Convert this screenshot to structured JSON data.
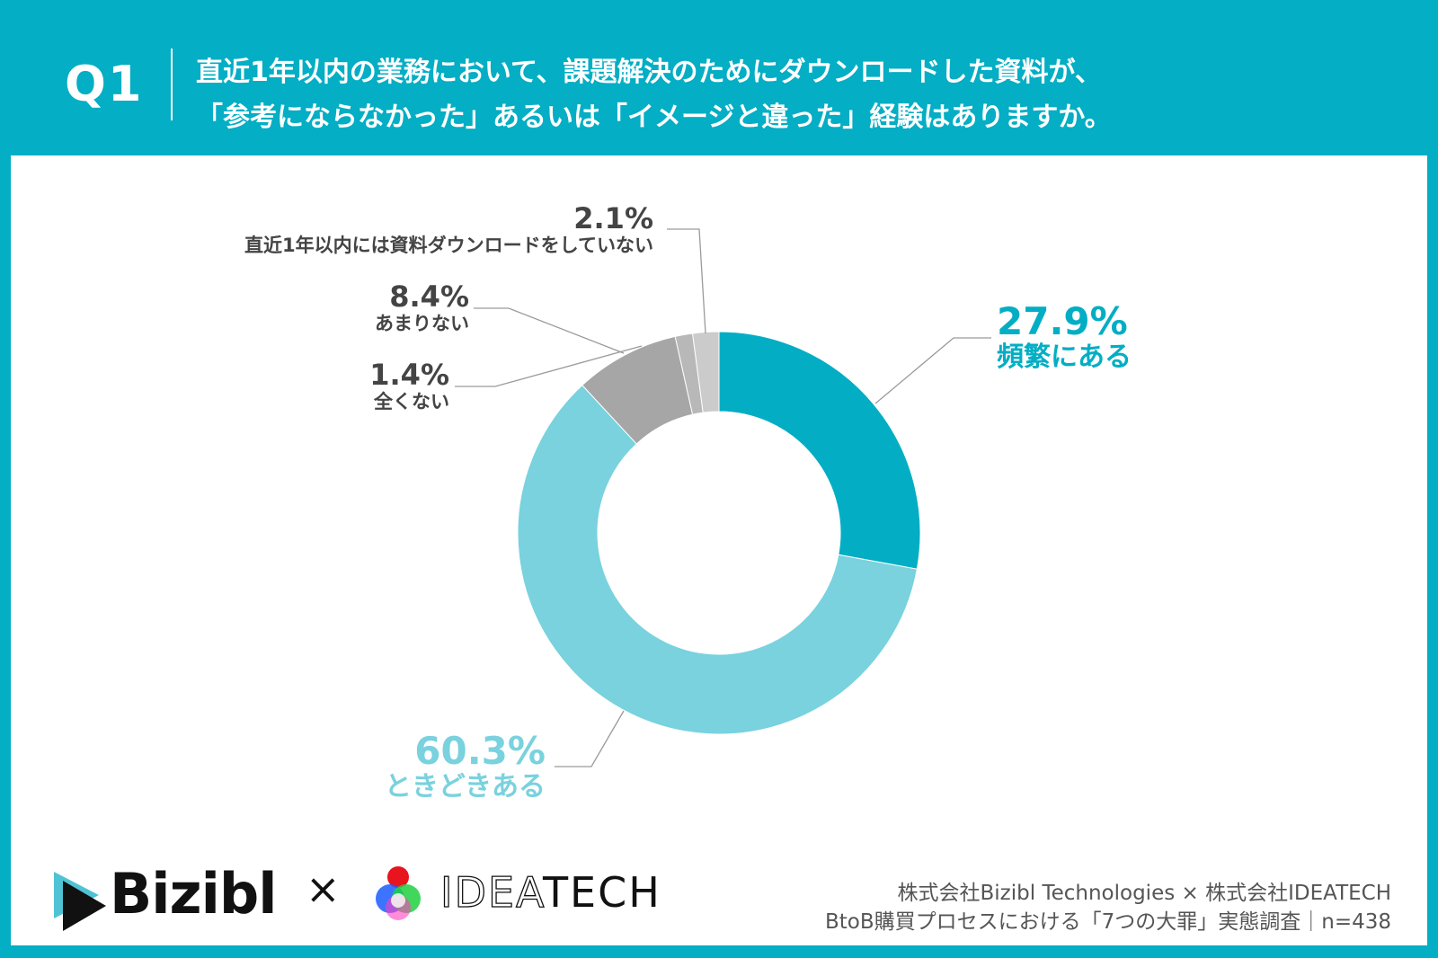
{
  "header": {
    "q_label": "Q1",
    "title_line1": "直近1年以内の業務において、課題解決のためにダウンロードした資料が、",
    "title_line2": "「参考にならなかった」あるいは「イメージと違った」経験はありますか。"
  },
  "chart_data": {
    "type": "pie",
    "donut": true,
    "slices": [
      {
        "label": "頻繁にある",
        "value": 27.9,
        "display": "27.9%",
        "color": "#03aec4"
      },
      {
        "label": "ときどきある",
        "value": 60.3,
        "display": "60.3%",
        "color": "#79d2de"
      },
      {
        "label": "あまりない",
        "value": 8.4,
        "display": "8.4%",
        "color": "#a6a6a6"
      },
      {
        "label": "全くない",
        "value": 1.4,
        "display": "1.4%",
        "color": "#b8b8b8"
      },
      {
        "label": "直近1年以内には資料ダウンロードをしていない",
        "value": 2.1,
        "display": "2.1%",
        "color": "#cbcbcb"
      }
    ]
  },
  "footer": {
    "logo1": "Bizibl",
    "times": "×",
    "logo2_outline": "IDEA",
    "logo2_solid": "TECH",
    "source_line1": "株式会社Bizibl Technologies × 株式会社IDEATECH",
    "source_line2": "BtoB購買プロセスにおける「7つの大罪」実態調査｜n=438"
  }
}
